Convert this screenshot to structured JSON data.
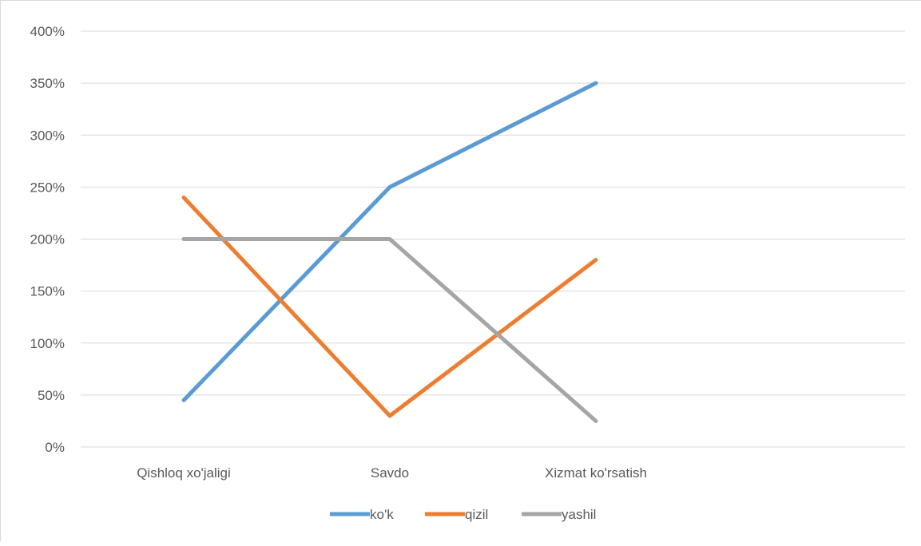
{
  "chart_data": {
    "type": "line",
    "categories": [
      "Qishloq xo'jaligi",
      "Savdo",
      "Xizmat ko'rsatish"
    ],
    "series": [
      {
        "name": "ko'k",
        "color": "#5B9BD5",
        "values": [
          45,
          250,
          350
        ]
      },
      {
        "name": "qizil",
        "color": "#ED7D31",
        "values": [
          240,
          30,
          180
        ]
      },
      {
        "name": "yashil",
        "color": "#A5A5A5",
        "values": [
          200,
          200,
          25
        ]
      }
    ],
    "yticks": [
      "0%",
      "50%",
      "100%",
      "150%",
      "200%",
      "250%",
      "300%",
      "350%",
      "400%"
    ],
    "ylim": [
      0,
      400
    ],
    "y_unit": "%",
    "grid": true,
    "legend": "bottom"
  }
}
